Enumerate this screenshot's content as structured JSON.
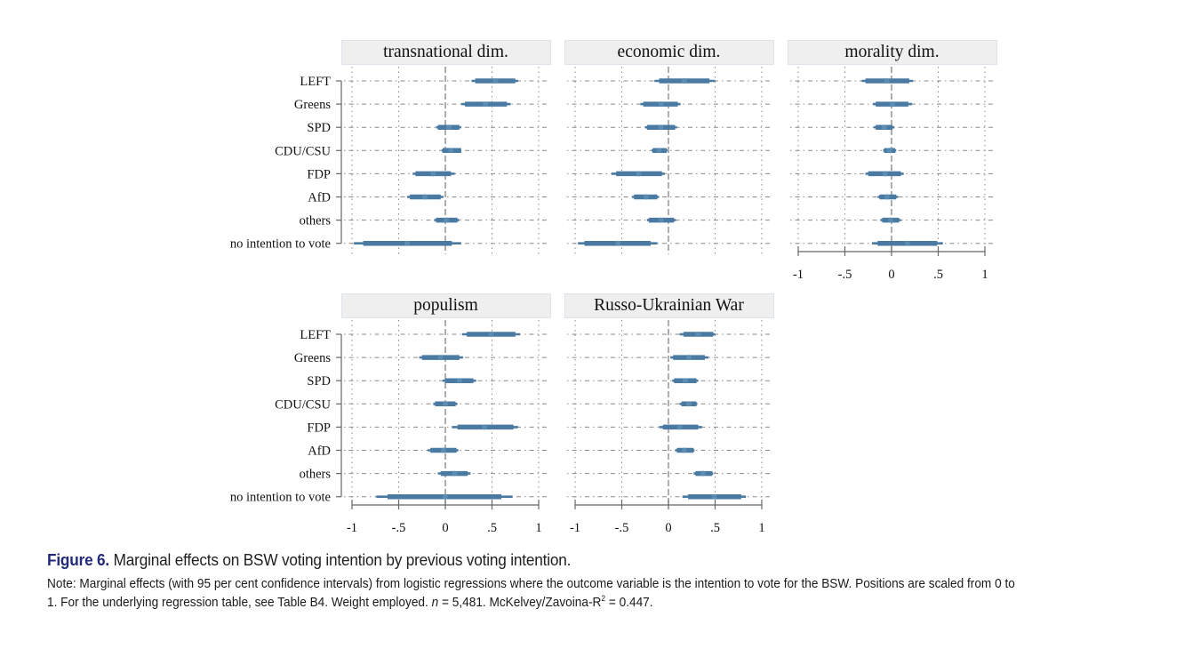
{
  "chart_data": {
    "type": "coefficient-plot",
    "title": "Marginal effects on BSW voting intention by previous voting intention.",
    "xlabel": "",
    "ylabel": "",
    "xlim": [
      -1,
      1
    ],
    "x_ticks": [
      "-1",
      "-.5",
      "0",
      ".5",
      "1"
    ],
    "x_tick_values": [
      -1,
      -0.5,
      0,
      0.5,
      1
    ],
    "grid": true,
    "categories": [
      "LEFT",
      "Greens",
      "SPD",
      "CDU/CSU",
      "FDP",
      "AfD",
      "others",
      "no intention to vote"
    ],
    "series_color": "#4a7aa2",
    "panels": [
      {
        "name": "transnational dim.",
        "estimates": [
          0.54,
          0.43,
          0.04,
          0.06,
          -0.13,
          -0.22,
          0.01,
          -0.41
        ],
        "ci_low": [
          0.28,
          0.17,
          -0.1,
          -0.04,
          -0.35,
          -0.41,
          -0.12,
          -0.98
        ],
        "ci_high": [
          0.78,
          0.7,
          0.17,
          0.17,
          0.1,
          -0.02,
          0.15,
          0.17
        ],
        "inner_low": [
          0.32,
          0.21,
          -0.08,
          -0.03,
          -0.32,
          -0.38,
          -0.1,
          -0.88
        ],
        "inner_high": [
          0.75,
          0.66,
          0.15,
          0.17,
          0.06,
          -0.05,
          0.13,
          0.07
        ]
      },
      {
        "name": "economic dim.",
        "estimates": [
          0.17,
          -0.08,
          -0.08,
          -0.1,
          -0.32,
          -0.24,
          -0.08,
          -0.54
        ],
        "ci_low": [
          -0.15,
          -0.3,
          -0.25,
          -0.18,
          -0.61,
          -0.39,
          -0.23,
          -0.97
        ],
        "ci_high": [
          0.5,
          0.13,
          0.09,
          -0.01,
          -0.04,
          -0.1,
          0.08,
          -0.12
        ],
        "inner_low": [
          -0.1,
          -0.27,
          -0.23,
          -0.17,
          -0.56,
          -0.37,
          -0.21,
          -0.9
        ],
        "inner_high": [
          0.44,
          0.1,
          0.07,
          -0.02,
          -0.07,
          -0.12,
          0.06,
          -0.19
        ]
      },
      {
        "name": "morality dim.",
        "estimates": [
          -0.05,
          0.01,
          -0.08,
          -0.02,
          -0.07,
          -0.05,
          -0.01,
          0.17
        ],
        "ci_low": [
          -0.32,
          -0.2,
          -0.19,
          -0.09,
          -0.28,
          -0.15,
          -0.12,
          -0.21
        ],
        "ci_high": [
          0.23,
          0.22,
          0.03,
          0.05,
          0.13,
          0.07,
          0.1,
          0.55
        ],
        "inner_low": [
          -0.28,
          -0.17,
          -0.17,
          -0.08,
          -0.25,
          -0.13,
          -0.1,
          -0.15
        ],
        "inner_high": [
          0.19,
          0.18,
          0.01,
          0.04,
          0.1,
          0.05,
          0.08,
          0.49
        ]
      },
      {
        "name": "populism",
        "estimates": [
          0.49,
          -0.05,
          0.15,
          0.0,
          0.42,
          -0.02,
          0.1,
          0.0
        ],
        "ci_low": [
          0.18,
          -0.28,
          -0.03,
          -0.13,
          0.07,
          -0.19,
          -0.08,
          -0.74
        ],
        "ci_high": [
          0.8,
          0.19,
          0.33,
          0.13,
          0.78,
          0.14,
          0.27,
          0.72
        ],
        "inner_low": [
          0.23,
          -0.25,
          0.0,
          -0.11,
          0.13,
          -0.16,
          -0.05,
          -0.62
        ],
        "inner_high": [
          0.75,
          0.15,
          0.3,
          0.11,
          0.73,
          0.12,
          0.24,
          0.6
        ]
      },
      {
        "name": "Russo-Ukrainian War",
        "estimates": [
          0.32,
          0.22,
          0.18,
          0.22,
          0.12,
          0.17,
          0.37,
          0.49
        ],
        "ci_low": [
          0.12,
          0.02,
          0.04,
          0.12,
          -0.1,
          0.07,
          0.27,
          0.15
        ],
        "ci_high": [
          0.5,
          0.43,
          0.32,
          0.31,
          0.36,
          0.28,
          0.48,
          0.83
        ],
        "inner_low": [
          0.16,
          0.05,
          0.06,
          0.14,
          -0.06,
          0.09,
          0.29,
          0.21
        ],
        "inner_high": [
          0.48,
          0.39,
          0.3,
          0.3,
          0.32,
          0.27,
          0.47,
          0.78
        ]
      }
    ]
  },
  "caption": {
    "figure_label": "Figure 6.",
    "figure_title": " Marginal effects on BSW voting intention by previous voting intention.",
    "note_line1": "Note: Marginal effects (with 95 per cent confidence intervals) from logistic regressions where the outcome variable is the intention to vote for the BSW. Positions are scaled from 0 to",
    "note_line2_a": "1. For the underlying regression table, see Table B4. Weight employed. ",
    "note_n_symbol": "n",
    "note_line2_b": " = 5,481. McKelvey/Zavoina-R",
    "note_sup": "2",
    "note_line2_c": " = 0.447."
  }
}
